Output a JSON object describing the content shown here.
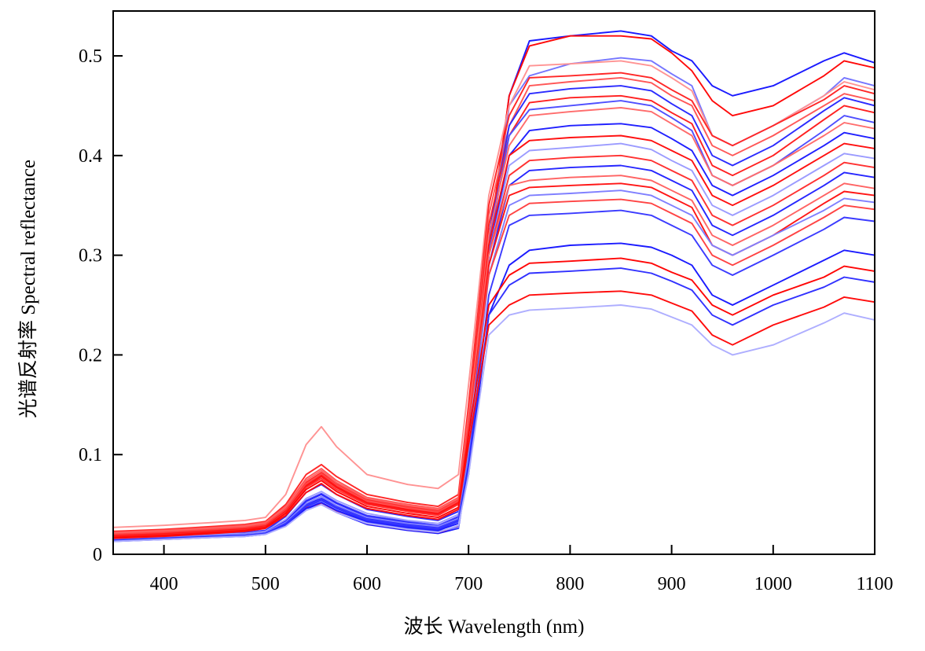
{
  "chart_data": {
    "type": "line",
    "title": "",
    "xlabel": "波长 Wavelength (nm)",
    "ylabel": "光谱反射率 Spectral reflectance",
    "xlim": [
      350,
      1100
    ],
    "ylim": [
      0,
      0.545
    ],
    "xticks": [
      400,
      500,
      600,
      700,
      800,
      900,
      1000,
      1100
    ],
    "yticks": [
      0,
      0.1,
      0.2,
      0.3,
      0.4,
      0.5
    ],
    "ytick_labels": [
      "0",
      "0.1",
      "0.2",
      "0.3",
      "0.4",
      "0.5"
    ],
    "grid": false,
    "legend": "none",
    "colors": {
      "low": "#1a1aff",
      "mid": "#ffffff",
      "high": "#ff0000"
    },
    "x": [
      350,
      400,
      450,
      480,
      500,
      520,
      540,
      555,
      570,
      600,
      640,
      670,
      690,
      700,
      720,
      740,
      760,
      800,
      850,
      880,
      900,
      920,
      940,
      960,
      1000,
      1050,
      1070,
      1100
    ],
    "series": [
      {
        "values": [
          0.014,
          0.016,
          0.018,
          0.019,
          0.021,
          0.03,
          0.046,
          0.05,
          0.042,
          0.03,
          0.024,
          0.021,
          0.026,
          0.09,
          0.3,
          0.46,
          0.515,
          0.52,
          0.525,
          0.52,
          0.505,
          0.495,
          0.47,
          0.46,
          0.47,
          0.495,
          0.503,
          0.493
        ],
        "color_value": 0.0
      },
      {
        "values": [
          0.014,
          0.016,
          0.018,
          0.019,
          0.021,
          0.03,
          0.047,
          0.051,
          0.043,
          0.031,
          0.025,
          0.022,
          0.028,
          0.1,
          0.31,
          0.46,
          0.51,
          0.52,
          0.52,
          0.517,
          0.503,
          0.485,
          0.455,
          0.44,
          0.45,
          0.48,
          0.495,
          0.488
        ],
        "color_value": 0.97
      },
      {
        "values": [
          0.015,
          0.017,
          0.019,
          0.02,
          0.022,
          0.031,
          0.048,
          0.052,
          0.044,
          0.032,
          0.026,
          0.023,
          0.027,
          0.09,
          0.3,
          0.45,
          0.48,
          0.492,
          0.498,
          0.495,
          0.482,
          0.47,
          0.42,
          0.41,
          0.43,
          0.46,
          0.478,
          0.47
        ],
        "color_value": 0.28
      },
      {
        "values": [
          0.027,
          0.029,
          0.032,
          0.034,
          0.037,
          0.06,
          0.11,
          0.128,
          0.108,
          0.08,
          0.07,
          0.066,
          0.08,
          0.17,
          0.36,
          0.45,
          0.49,
          0.492,
          0.495,
          0.49,
          0.478,
          0.465,
          0.42,
          0.41,
          0.43,
          0.46,
          0.474,
          0.466
        ],
        "color_value": 0.62
      },
      {
        "values": [
          0.023,
          0.025,
          0.028,
          0.03,
          0.033,
          0.05,
          0.08,
          0.09,
          0.078,
          0.06,
          0.052,
          0.048,
          0.06,
          0.15,
          0.35,
          0.44,
          0.478,
          0.48,
          0.483,
          0.478,
          0.466,
          0.455,
          0.42,
          0.41,
          0.43,
          0.456,
          0.47,
          0.462
        ],
        "color_value": 0.88
      },
      {
        "values": [
          0.022,
          0.024,
          0.027,
          0.029,
          0.032,
          0.048,
          0.076,
          0.086,
          0.074,
          0.057,
          0.05,
          0.046,
          0.057,
          0.14,
          0.34,
          0.43,
          0.47,
          0.474,
          0.478,
          0.473,
          0.46,
          0.45,
          0.41,
          0.4,
          0.42,
          0.45,
          0.462,
          0.455
        ],
        "color_value": 0.75
      },
      {
        "values": [
          0.017,
          0.019,
          0.021,
          0.022,
          0.024,
          0.038,
          0.062,
          0.07,
          0.06,
          0.045,
          0.038,
          0.034,
          0.043,
          0.12,
          0.32,
          0.43,
          0.462,
          0.467,
          0.47,
          0.465,
          0.452,
          0.44,
          0.4,
          0.39,
          0.41,
          0.445,
          0.458,
          0.45
        ],
        "color_value": 0.1
      },
      {
        "values": [
          0.02,
          0.022,
          0.025,
          0.027,
          0.03,
          0.046,
          0.072,
          0.082,
          0.071,
          0.055,
          0.048,
          0.044,
          0.055,
          0.14,
          0.33,
          0.42,
          0.453,
          0.458,
          0.46,
          0.455,
          0.443,
          0.432,
          0.39,
          0.38,
          0.4,
          0.436,
          0.45,
          0.443
        ],
        "color_value": 0.9
      },
      {
        "values": [
          0.016,
          0.018,
          0.02,
          0.021,
          0.023,
          0.034,
          0.054,
          0.061,
          0.052,
          0.039,
          0.033,
          0.029,
          0.038,
          0.11,
          0.31,
          0.42,
          0.446,
          0.45,
          0.455,
          0.45,
          0.438,
          0.425,
          0.38,
          0.37,
          0.39,
          0.425,
          0.44,
          0.433
        ],
        "color_value": 0.2
      },
      {
        "values": [
          0.019,
          0.021,
          0.024,
          0.026,
          0.029,
          0.044,
          0.07,
          0.08,
          0.069,
          0.053,
          0.046,
          0.042,
          0.053,
          0.13,
          0.32,
          0.41,
          0.44,
          0.444,
          0.448,
          0.444,
          0.432,
          0.42,
          0.38,
          0.37,
          0.39,
          0.42,
          0.433,
          0.427
        ],
        "color_value": 0.7
      },
      {
        "values": [
          0.015,
          0.017,
          0.019,
          0.02,
          0.022,
          0.032,
          0.05,
          0.056,
          0.048,
          0.036,
          0.03,
          0.027,
          0.035,
          0.1,
          0.3,
          0.4,
          0.425,
          0.43,
          0.432,
          0.428,
          0.417,
          0.405,
          0.37,
          0.36,
          0.38,
          0.41,
          0.423,
          0.417
        ],
        "color_value": 0.05
      },
      {
        "values": [
          0.018,
          0.02,
          0.023,
          0.025,
          0.028,
          0.043,
          0.068,
          0.078,
          0.067,
          0.051,
          0.044,
          0.04,
          0.051,
          0.13,
          0.31,
          0.4,
          0.415,
          0.418,
          0.42,
          0.415,
          0.405,
          0.395,
          0.36,
          0.35,
          0.37,
          0.4,
          0.412,
          0.407
        ],
        "color_value": 0.95
      },
      {
        "values": [
          0.016,
          0.018,
          0.02,
          0.021,
          0.023,
          0.035,
          0.056,
          0.063,
          0.054,
          0.041,
          0.034,
          0.031,
          0.04,
          0.11,
          0.3,
          0.39,
          0.405,
          0.408,
          0.412,
          0.406,
          0.395,
          0.385,
          0.35,
          0.34,
          0.36,
          0.39,
          0.402,
          0.397
        ],
        "color_value": 0.35
      },
      {
        "values": [
          0.018,
          0.02,
          0.023,
          0.025,
          0.028,
          0.042,
          0.067,
          0.076,
          0.065,
          0.05,
          0.043,
          0.039,
          0.05,
          0.13,
          0.3,
          0.38,
          0.395,
          0.398,
          0.4,
          0.395,
          0.385,
          0.375,
          0.34,
          0.33,
          0.35,
          0.38,
          0.393,
          0.388
        ],
        "color_value": 0.85
      },
      {
        "values": [
          0.015,
          0.017,
          0.019,
          0.02,
          0.022,
          0.033,
          0.053,
          0.06,
          0.051,
          0.038,
          0.032,
          0.028,
          0.037,
          0.1,
          0.29,
          0.37,
          0.385,
          0.388,
          0.39,
          0.385,
          0.375,
          0.365,
          0.33,
          0.32,
          0.34,
          0.37,
          0.383,
          0.378
        ],
        "color_value": 0.08
      },
      {
        "values": [
          0.021,
          0.023,
          0.026,
          0.028,
          0.031,
          0.047,
          0.074,
          0.084,
          0.072,
          0.056,
          0.049,
          0.045,
          0.056,
          0.14,
          0.3,
          0.37,
          0.375,
          0.378,
          0.38,
          0.375,
          0.365,
          0.355,
          0.32,
          0.31,
          0.33,
          0.36,
          0.372,
          0.367
        ],
        "color_value": 0.72
      },
      {
        "values": [
          0.019,
          0.021,
          0.024,
          0.026,
          0.029,
          0.044,
          0.069,
          0.079,
          0.068,
          0.052,
          0.045,
          0.041,
          0.052,
          0.13,
          0.29,
          0.36,
          0.368,
          0.37,
          0.372,
          0.368,
          0.358,
          0.348,
          0.31,
          0.3,
          0.32,
          0.352,
          0.364,
          0.36
        ],
        "color_value": 0.93
      },
      {
        "values": [
          0.015,
          0.017,
          0.019,
          0.02,
          0.022,
          0.032,
          0.051,
          0.058,
          0.049,
          0.037,
          0.031,
          0.028,
          0.036,
          0.1,
          0.28,
          0.35,
          0.36,
          0.362,
          0.365,
          0.36,
          0.35,
          0.34,
          0.31,
          0.3,
          0.32,
          0.345,
          0.357,
          0.353
        ],
        "color_value": 0.3
      },
      {
        "values": [
          0.02,
          0.022,
          0.025,
          0.027,
          0.03,
          0.045,
          0.071,
          0.081,
          0.07,
          0.054,
          0.047,
          0.043,
          0.054,
          0.13,
          0.28,
          0.34,
          0.352,
          0.354,
          0.356,
          0.352,
          0.342,
          0.332,
          0.3,
          0.29,
          0.31,
          0.338,
          0.35,
          0.346
        ],
        "color_value": 0.8
      },
      {
        "values": [
          0.014,
          0.016,
          0.018,
          0.019,
          0.021,
          0.031,
          0.049,
          0.055,
          0.047,
          0.035,
          0.029,
          0.026,
          0.034,
          0.09,
          0.26,
          0.33,
          0.34,
          0.342,
          0.345,
          0.34,
          0.33,
          0.32,
          0.29,
          0.28,
          0.3,
          0.326,
          0.338,
          0.334
        ],
        "color_value": 0.15
      },
      {
        "values": [
          0.013,
          0.015,
          0.017,
          0.018,
          0.02,
          0.029,
          0.046,
          0.052,
          0.044,
          0.033,
          0.027,
          0.024,
          0.031,
          0.08,
          0.24,
          0.29,
          0.305,
          0.31,
          0.312,
          0.308,
          0.3,
          0.29,
          0.26,
          0.25,
          0.27,
          0.295,
          0.305,
          0.3
        ],
        "color_value": 0.02
      },
      {
        "values": [
          0.017,
          0.019,
          0.022,
          0.024,
          0.027,
          0.041,
          0.065,
          0.074,
          0.063,
          0.048,
          0.041,
          0.037,
          0.047,
          0.12,
          0.25,
          0.28,
          0.292,
          0.294,
          0.297,
          0.292,
          0.283,
          0.275,
          0.25,
          0.24,
          0.26,
          0.278,
          0.289,
          0.284
        ],
        "color_value": 0.98
      },
      {
        "values": [
          0.014,
          0.016,
          0.018,
          0.019,
          0.021,
          0.03,
          0.048,
          0.054,
          0.046,
          0.034,
          0.028,
          0.025,
          0.033,
          0.09,
          0.24,
          0.27,
          0.282,
          0.284,
          0.287,
          0.282,
          0.274,
          0.265,
          0.24,
          0.23,
          0.25,
          0.268,
          0.278,
          0.273
        ],
        "color_value": 0.12
      },
      {
        "values": [
          0.016,
          0.018,
          0.021,
          0.023,
          0.026,
          0.039,
          0.062,
          0.071,
          0.06,
          0.046,
          0.039,
          0.035,
          0.045,
          0.11,
          0.23,
          0.25,
          0.26,
          0.262,
          0.264,
          0.26,
          0.252,
          0.244,
          0.22,
          0.21,
          0.23,
          0.248,
          0.258,
          0.253
        ],
        "color_value": 0.96
      },
      {
        "values": [
          0.013,
          0.015,
          0.017,
          0.018,
          0.02,
          0.028,
          0.044,
          0.05,
          0.042,
          0.031,
          0.025,
          0.022,
          0.029,
          0.08,
          0.22,
          0.24,
          0.245,
          0.247,
          0.25,
          0.246,
          0.238,
          0.23,
          0.21,
          0.2,
          0.21,
          0.232,
          0.242,
          0.235
        ],
        "color_value": 0.38
      }
    ]
  }
}
